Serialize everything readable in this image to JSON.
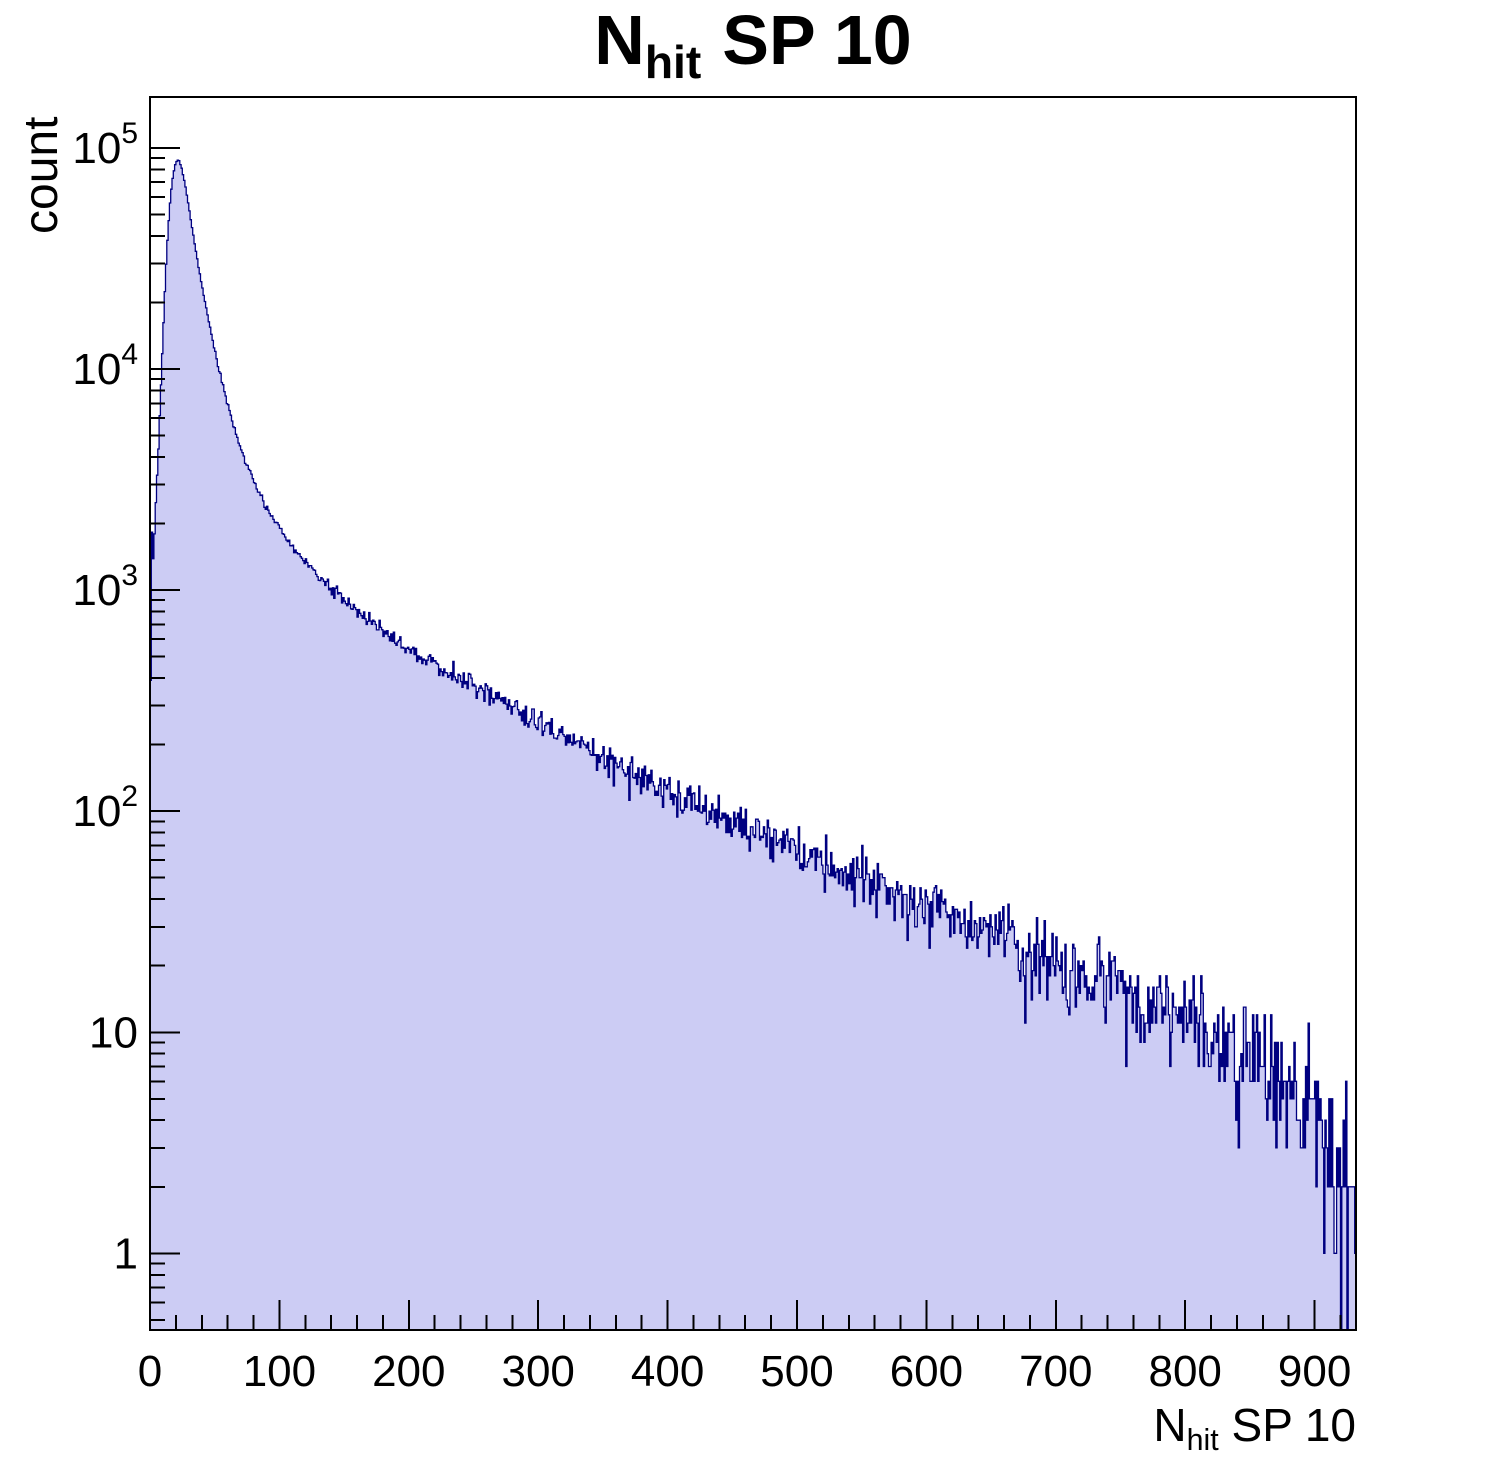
{
  "title": {
    "main": "N",
    "sub": "hit",
    "rest": "SP 10"
  },
  "x_axis_label": {
    "main": "N",
    "sub": "hit",
    "rest": "SP 10"
  },
  "y_axis_label": "count",
  "chart_data": {
    "type": "bar",
    "subtype": "histogram-log-y",
    "title": "N_hit SP 10",
    "xlabel": "N_hit SP 10",
    "ylabel": "count",
    "x_range": [
      0,
      932
    ],
    "y_range": [
      0.45,
      170000
    ],
    "y_scale": "log10",
    "bin_width": 1,
    "n_bins": 932,
    "grid": false,
    "legend": null,
    "x_ticks_major": [
      0,
      100,
      200,
      300,
      400,
      500,
      600,
      700,
      800,
      900
    ],
    "x_tick_minor_step": 20,
    "y_ticks_major": [
      {
        "value": 1,
        "base": "1",
        "exp": ""
      },
      {
        "value": 10,
        "base": "10",
        "exp": ""
      },
      {
        "value": 100,
        "base": "10",
        "exp": "2"
      },
      {
        "value": 1000,
        "base": "10",
        "exp": "3"
      },
      {
        "value": 10000,
        "base": "10",
        "exp": "4"
      },
      {
        "value": 100000,
        "base": "10",
        "exp": "5"
      }
    ],
    "peak": {
      "x": 21,
      "count": 88000
    },
    "colors": {
      "fill": "#ccccf4",
      "line": "#000080",
      "axis": "#000000",
      "text": "#000000",
      "background": "#ffffff"
    },
    "noise_seed": 20,
    "anchors": [
      [
        0,
        60
      ],
      [
        1,
        2700
      ],
      [
        2,
        1250
      ],
      [
        3,
        1500
      ],
      [
        4,
        2100
      ],
      [
        5,
        2800
      ],
      [
        6,
        3800
      ],
      [
        7,
        5200
      ],
      [
        8,
        7200
      ],
      [
        9,
        10000
      ],
      [
        10,
        14000
      ],
      [
        11,
        19000
      ],
      [
        12,
        26000
      ],
      [
        13,
        34000
      ],
      [
        14,
        43000
      ],
      [
        15,
        52000
      ],
      [
        16,
        61000
      ],
      [
        17,
        69000
      ],
      [
        18,
        76000
      ],
      [
        19,
        82000
      ],
      [
        20,
        86000
      ],
      [
        21,
        88000
      ],
      [
        22,
        88000
      ],
      [
        23,
        86000
      ],
      [
        24,
        83000
      ],
      [
        25,
        79000
      ],
      [
        26,
        74000
      ],
      [
        27,
        69000
      ],
      [
        28,
        64000
      ],
      [
        29,
        59000
      ],
      [
        30,
        54000
      ],
      [
        32,
        45500
      ],
      [
        34,
        38500
      ],
      [
        36,
        32800
      ],
      [
        38,
        28000
      ],
      [
        40,
        24000
      ],
      [
        42,
        20800
      ],
      [
        44,
        18000
      ],
      [
        46,
        15800
      ],
      [
        48,
        13800
      ],
      [
        50,
        12200
      ],
      [
        52,
        10800
      ],
      [
        54,
        9600
      ],
      [
        56,
        8600
      ],
      [
        58,
        7700
      ],
      [
        60,
        7000
      ],
      [
        63,
        6000
      ],
      [
        66,
        5200
      ],
      [
        69,
        4600
      ],
      [
        72,
        4100
      ],
      [
        75,
        3700
      ],
      [
        78,
        3350
      ],
      [
        81,
        3050
      ],
      [
        84,
        2800
      ],
      [
        87,
        2580
      ],
      [
        90,
        2380
      ],
      [
        93,
        2220
      ],
      [
        96,
        2070
      ],
      [
        100,
        1900
      ],
      [
        105,
        1720
      ],
      [
        110,
        1570
      ],
      [
        115,
        1450
      ],
      [
        120,
        1340
      ],
      [
        125,
        1250
      ],
      [
        130,
        1160
      ],
      [
        135,
        1090
      ],
      [
        140,
        1020
      ],
      [
        145,
        960
      ],
      [
        150,
        905
      ],
      [
        155,
        855
      ],
      [
        160,
        805
      ],
      [
        165,
        765
      ],
      [
        170,
        725
      ],
      [
        175,
        690
      ],
      [
        180,
        655
      ],
      [
        185,
        625
      ],
      [
        190,
        595
      ],
      [
        195,
        570
      ],
      [
        200,
        545
      ],
      [
        210,
        500
      ],
      [
        220,
        462
      ],
      [
        230,
        428
      ],
      [
        240,
        397
      ],
      [
        250,
        368
      ],
      [
        260,
        341
      ],
      [
        270,
        317
      ],
      [
        280,
        294
      ],
      [
        290,
        272
      ],
      [
        300,
        252
      ],
      [
        310,
        234
      ],
      [
        320,
        217
      ],
      [
        330,
        202
      ],
      [
        340,
        188
      ],
      [
        350,
        175
      ],
      [
        360,
        163
      ],
      [
        370,
        152
      ],
      [
        380,
        142
      ],
      [
        390,
        133
      ],
      [
        400,
        125
      ],
      [
        410,
        117
      ],
      [
        420,
        110
      ],
      [
        430,
        103
      ],
      [
        440,
        97
      ],
      [
        450,
        91
      ],
      [
        460,
        86
      ],
      [
        470,
        81
      ],
      [
        480,
        76
      ],
      [
        490,
        72
      ],
      [
        500,
        68
      ],
      [
        510,
        64
      ],
      [
        520,
        60
      ],
      [
        530,
        57
      ],
      [
        540,
        54
      ],
      [
        550,
        51
      ],
      [
        560,
        48
      ],
      [
        570,
        45
      ],
      [
        580,
        43
      ],
      [
        590,
        40
      ],
      [
        600,
        38
      ],
      [
        610,
        36
      ],
      [
        620,
        34
      ],
      [
        630,
        32
      ],
      [
        640,
        30
      ],
      [
        650,
        28
      ],
      [
        660,
        27
      ],
      [
        670,
        25
      ],
      [
        680,
        24
      ],
      [
        690,
        22
      ],
      [
        700,
        21
      ],
      [
        710,
        20
      ],
      [
        720,
        19
      ],
      [
        730,
        18
      ],
      [
        740,
        17
      ],
      [
        750,
        16
      ],
      [
        760,
        15
      ],
      [
        770,
        14
      ],
      [
        780,
        13
      ],
      [
        790,
        12.3
      ],
      [
        800,
        11.6
      ],
      [
        810,
        10.9
      ],
      [
        820,
        10.2
      ],
      [
        830,
        9.5
      ],
      [
        840,
        8.8
      ],
      [
        850,
        8.1
      ],
      [
        860,
        7.4
      ],
      [
        870,
        6.6
      ],
      [
        880,
        5.8
      ],
      [
        890,
        5.0
      ],
      [
        900,
        4.2
      ],
      [
        910,
        3.3
      ],
      [
        918,
        2.5
      ],
      [
        924,
        1.8
      ],
      [
        929,
        1.2
      ],
      [
        932,
        0.9
      ]
    ]
  }
}
